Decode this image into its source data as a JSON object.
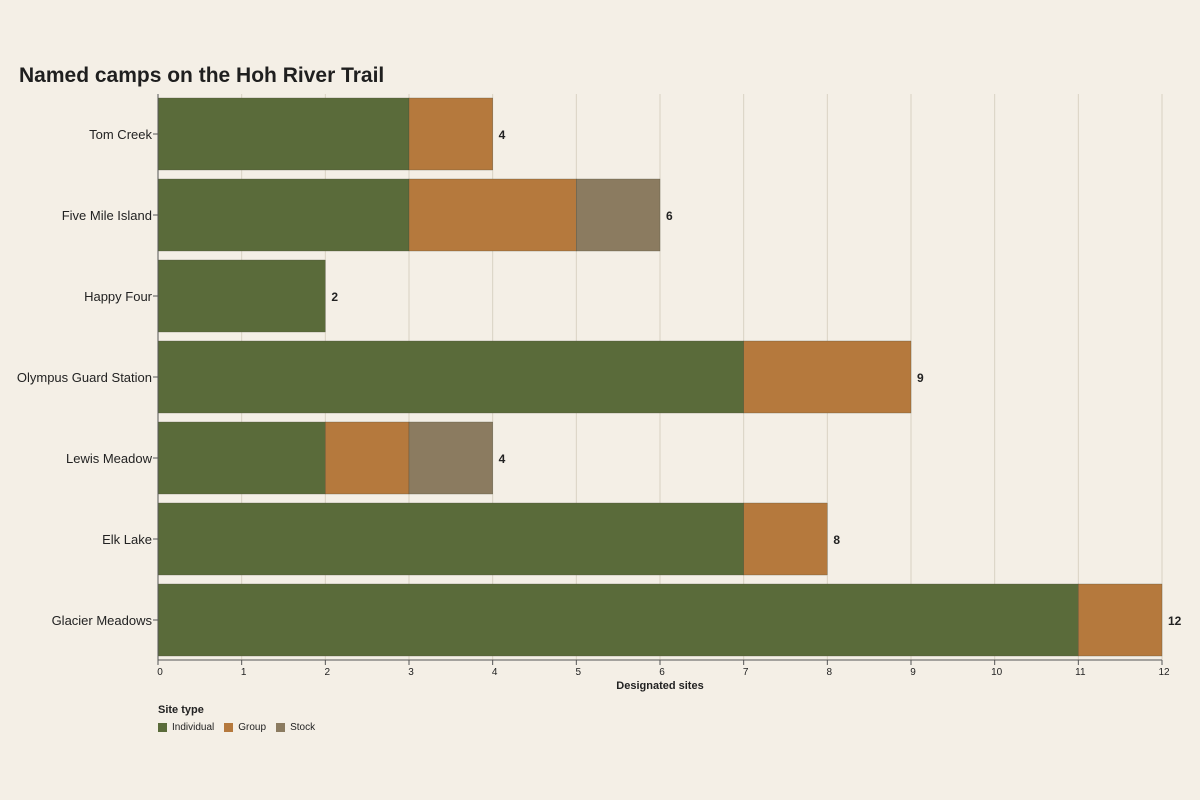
{
  "chart_data": {
    "type": "bar",
    "orientation": "horizontal",
    "stacked": true,
    "title": "Named camps on the Hoh River Trail",
    "xlabel": "Designated sites",
    "ylabel": "",
    "xlim": [
      0,
      12
    ],
    "x_ticks": [
      0,
      1,
      2,
      3,
      4,
      5,
      6,
      7,
      8,
      9,
      10,
      11,
      12
    ],
    "grid": "vertical",
    "categories": [
      "Tom Creek",
      "Five Mile Island",
      "Happy Four",
      "Olympus Guard Station",
      "Lewis Meadow",
      "Elk Lake",
      "Glacier Meadows"
    ],
    "series": [
      {
        "name": "Individual",
        "color": "#5a6b3a",
        "values": [
          3,
          3,
          2,
          7,
          2,
          7,
          11
        ]
      },
      {
        "name": "Group",
        "color": "#b5793d",
        "values": [
          1,
          2,
          0,
          2,
          1,
          1,
          1
        ]
      },
      {
        "name": "Stock",
        "color": "#8b7b60",
        "values": [
          0,
          1,
          0,
          0,
          1,
          0,
          0
        ]
      }
    ],
    "totals": [
      4,
      6,
      2,
      9,
      4,
      8,
      12
    ],
    "legend": {
      "title": "Site type",
      "placement": "bottom-left"
    }
  }
}
